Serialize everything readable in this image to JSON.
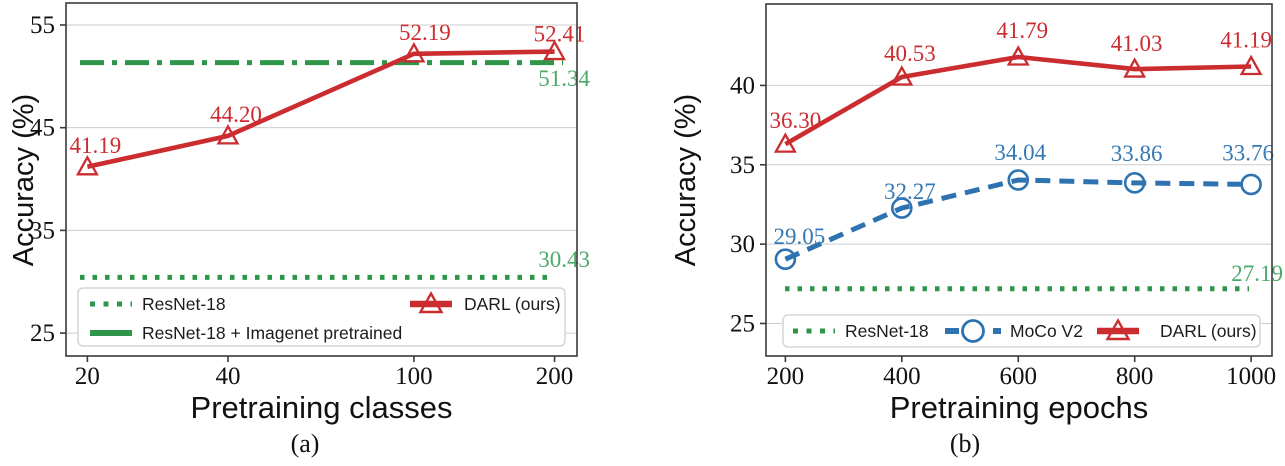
{
  "colors": {
    "red": "#cb2c2f",
    "green": "#2e9549",
    "blue": "#2e73b0",
    "red_label": "#cb2c2f",
    "green_label": "#4da96a",
    "blue_label": "#3579b4",
    "grid": "#cdcdcd",
    "spine": "#3a3a3a",
    "legend_border": "#d6d6d6"
  },
  "captions": {
    "a": "(a)",
    "b": "(b)"
  },
  "chart_data": [
    {
      "type": "line",
      "panel": "(a)",
      "title": "",
      "xlabel": "Pretraining classes",
      "ylabel": "Accuracy (%)",
      "x_scale": "log",
      "x_ticks": [
        20,
        40,
        100,
        200
      ],
      "y_ticks": [
        25,
        35,
        45,
        55
      ],
      "xlim": [
        18.0,
        223.4
      ],
      "ylim": [
        22.77,
        57.14
      ],
      "grid": "horizontal-only",
      "legend_position": "lower inside, two columns",
      "series": [
        {
          "name": "DARL (ours)",
          "color": "red",
          "marker": "triangle",
          "line_style": "solid",
          "x": [
            20,
            40,
            100,
            200
          ],
          "y": [
            41.19,
            44.2,
            52.19,
            52.41
          ],
          "point_labels": [
            "41.19",
            "44.20",
            "52.19",
            "52.41"
          ]
        }
      ],
      "hlines": [
        {
          "name": "ResNet-18",
          "value": 30.43,
          "label": "30.43",
          "line_style": "dotted"
        },
        {
          "name": "ResNet-18 + Imagenet pretrained",
          "value": 51.34,
          "label": "51.34",
          "line_style": "dashdot"
        }
      ]
    },
    {
      "type": "line",
      "panel": "(b)",
      "title": "",
      "xlabel": "Pretraining epochs",
      "ylabel": "Accuracy (%)",
      "x_scale": "linear",
      "x_ticks": [
        200,
        400,
        600,
        800,
        1000
      ],
      "y_ticks": [
        25,
        30,
        35,
        40
      ],
      "xlim": [
        166.7,
        1035.9
      ],
      "ylim": [
        22.95,
        45.13
      ],
      "grid": "horizontal-only",
      "legend_position": "lower center inside, one row",
      "series": [
        {
          "name": "DARL (ours)",
          "color": "red",
          "marker": "triangle",
          "line_style": "solid",
          "x": [
            200,
            400,
            600,
            800,
            1000
          ],
          "y": [
            36.3,
            40.53,
            41.79,
            41.03,
            41.19
          ],
          "point_labels": [
            "36.30",
            "40.53",
            "41.79",
            "41.03",
            "41.19"
          ]
        },
        {
          "name": "MoCo V2",
          "color": "blue",
          "marker": "circle",
          "line_style": "dashed",
          "x": [
            200,
            400,
            600,
            800,
            1000
          ],
          "y": [
            29.05,
            32.27,
            34.04,
            33.86,
            33.76
          ],
          "point_labels": [
            "29.05",
            "32.27",
            "34.04",
            "33.86",
            "33.76"
          ]
        }
      ],
      "hlines": [
        {
          "name": "ResNet-18",
          "value": 27.19,
          "label": "27.19",
          "line_style": "dotted"
        }
      ]
    }
  ]
}
